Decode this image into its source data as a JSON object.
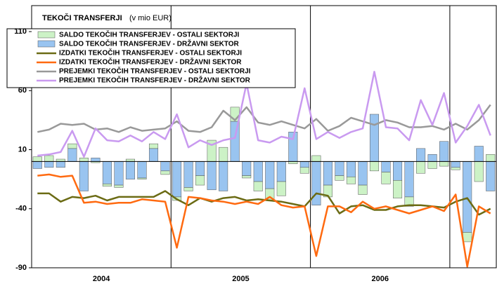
{
  "chart_data": {
    "type": "combo",
    "title": "TEKOČI TRANSFERJI",
    "subtitle": "(v mio EUR)",
    "year_labels": [
      "2004",
      "2005",
      "2006"
    ],
    "months_per_year": 12,
    "ylim": [
      -90,
      132
    ],
    "yticks": [
      -90,
      -40,
      10,
      60,
      110
    ],
    "grid": false,
    "legend": "upper left",
    "series": [
      {
        "name": "SALDO TEKOČIH TRANSFERJEV - OSTALI SEKTORJI",
        "kind": "bar",
        "stack": 1,
        "color": "#ccf2c6",
        "values": [
          4,
          5,
          2,
          4,
          3,
          -1,
          -2,
          -2,
          2,
          -1,
          4,
          -3,
          -3,
          -3,
          -8,
          18,
          12,
          12,
          -2,
          -8,
          -10,
          -12,
          -2,
          -5,
          5,
          -10,
          -4,
          -6,
          -8,
          -8,
          -10,
          -15,
          -8,
          -10,
          -6,
          -4,
          -2,
          -8,
          -17,
          6
        ]
      },
      {
        "name": "SALDO TEKOČIH TRANSFERJEV - DRŽAVNI SEKTOR",
        "kind": "bar",
        "stack": 0,
        "color": "#99c4f0",
        "values": [
          -6,
          -5,
          -5,
          11,
          -25,
          3,
          -19,
          -20,
          -15,
          -14,
          11,
          -8,
          -30,
          -22,
          -12,
          -24,
          -25,
          34,
          -12,
          -17,
          -23,
          -17,
          25,
          -5,
          -37,
          -20,
          -12,
          -13,
          -20,
          40,
          -9,
          -16,
          -30,
          11,
          6,
          17,
          -5,
          -60,
          13,
          -25
        ]
      },
      {
        "name": "IZDATKI TEKOČIH TRANSFERJEV - OSTALI SEKTORJI",
        "kind": "line",
        "color": "#6b6b14",
        "values": [
          -27,
          -27,
          -34,
          -30,
          -31,
          -29,
          -33,
          -30,
          -30,
          -30,
          -30,
          -25,
          -32,
          -37,
          -31,
          -34,
          -31,
          -30,
          -33,
          -32,
          -33,
          -34,
          -36,
          -38,
          -27,
          -29,
          -44,
          -38,
          -37,
          -41,
          -41,
          -38,
          -37,
          -37,
          -38,
          -39,
          -34,
          -31,
          -45,
          -40
        ]
      },
      {
        "name": "IZDATKI TEKOČIH TRANSFERJEV - DRŽAVNI SEKTOR",
        "kind": "line",
        "color": "#ff6a10",
        "values": [
          -12,
          -11,
          -13,
          -12,
          -35,
          -34,
          -36,
          -35,
          -35,
          -32,
          -33,
          -34,
          -73,
          -30,
          -31,
          -33,
          -34,
          -36,
          -34,
          -36,
          -30,
          -37,
          -39,
          -38,
          -80,
          -38,
          -38,
          -43,
          -34,
          -40,
          -38,
          -41,
          -44,
          -41,
          -38,
          -42,
          -28,
          -89,
          -38,
          -44
        ]
      },
      {
        "name": "PREJEMKI TEKOČIH TRANSFERJEV - OSTALI SEKTORJI",
        "kind": "line",
        "color": "#999999",
        "values": [
          25,
          27,
          32,
          31,
          32,
          27,
          28,
          25,
          29,
          26,
          27,
          28,
          34,
          26,
          25,
          29,
          43,
          35,
          46,
          33,
          31,
          34,
          31,
          28,
          36,
          26,
          30,
          37,
          34,
          31,
          35,
          33,
          29,
          29,
          30,
          27,
          32,
          27,
          35,
          48
        ]
      },
      {
        "name": "PREJEMKI TEKOČIH TRANSFERJEV - DRŽAVNI SEKTOR",
        "kind": "line",
        "color": "#c99af0",
        "values": [
          5,
          6,
          8,
          26,
          4,
          28,
          18,
          17,
          22,
          17,
          25,
          19,
          40,
          12,
          18,
          14,
          18,
          20,
          66,
          18,
          16,
          21,
          19,
          62,
          19,
          25,
          20,
          25,
          28,
          76,
          29,
          28,
          18,
          52,
          31,
          58,
          16,
          30,
          48,
          22
        ]
      }
    ]
  }
}
